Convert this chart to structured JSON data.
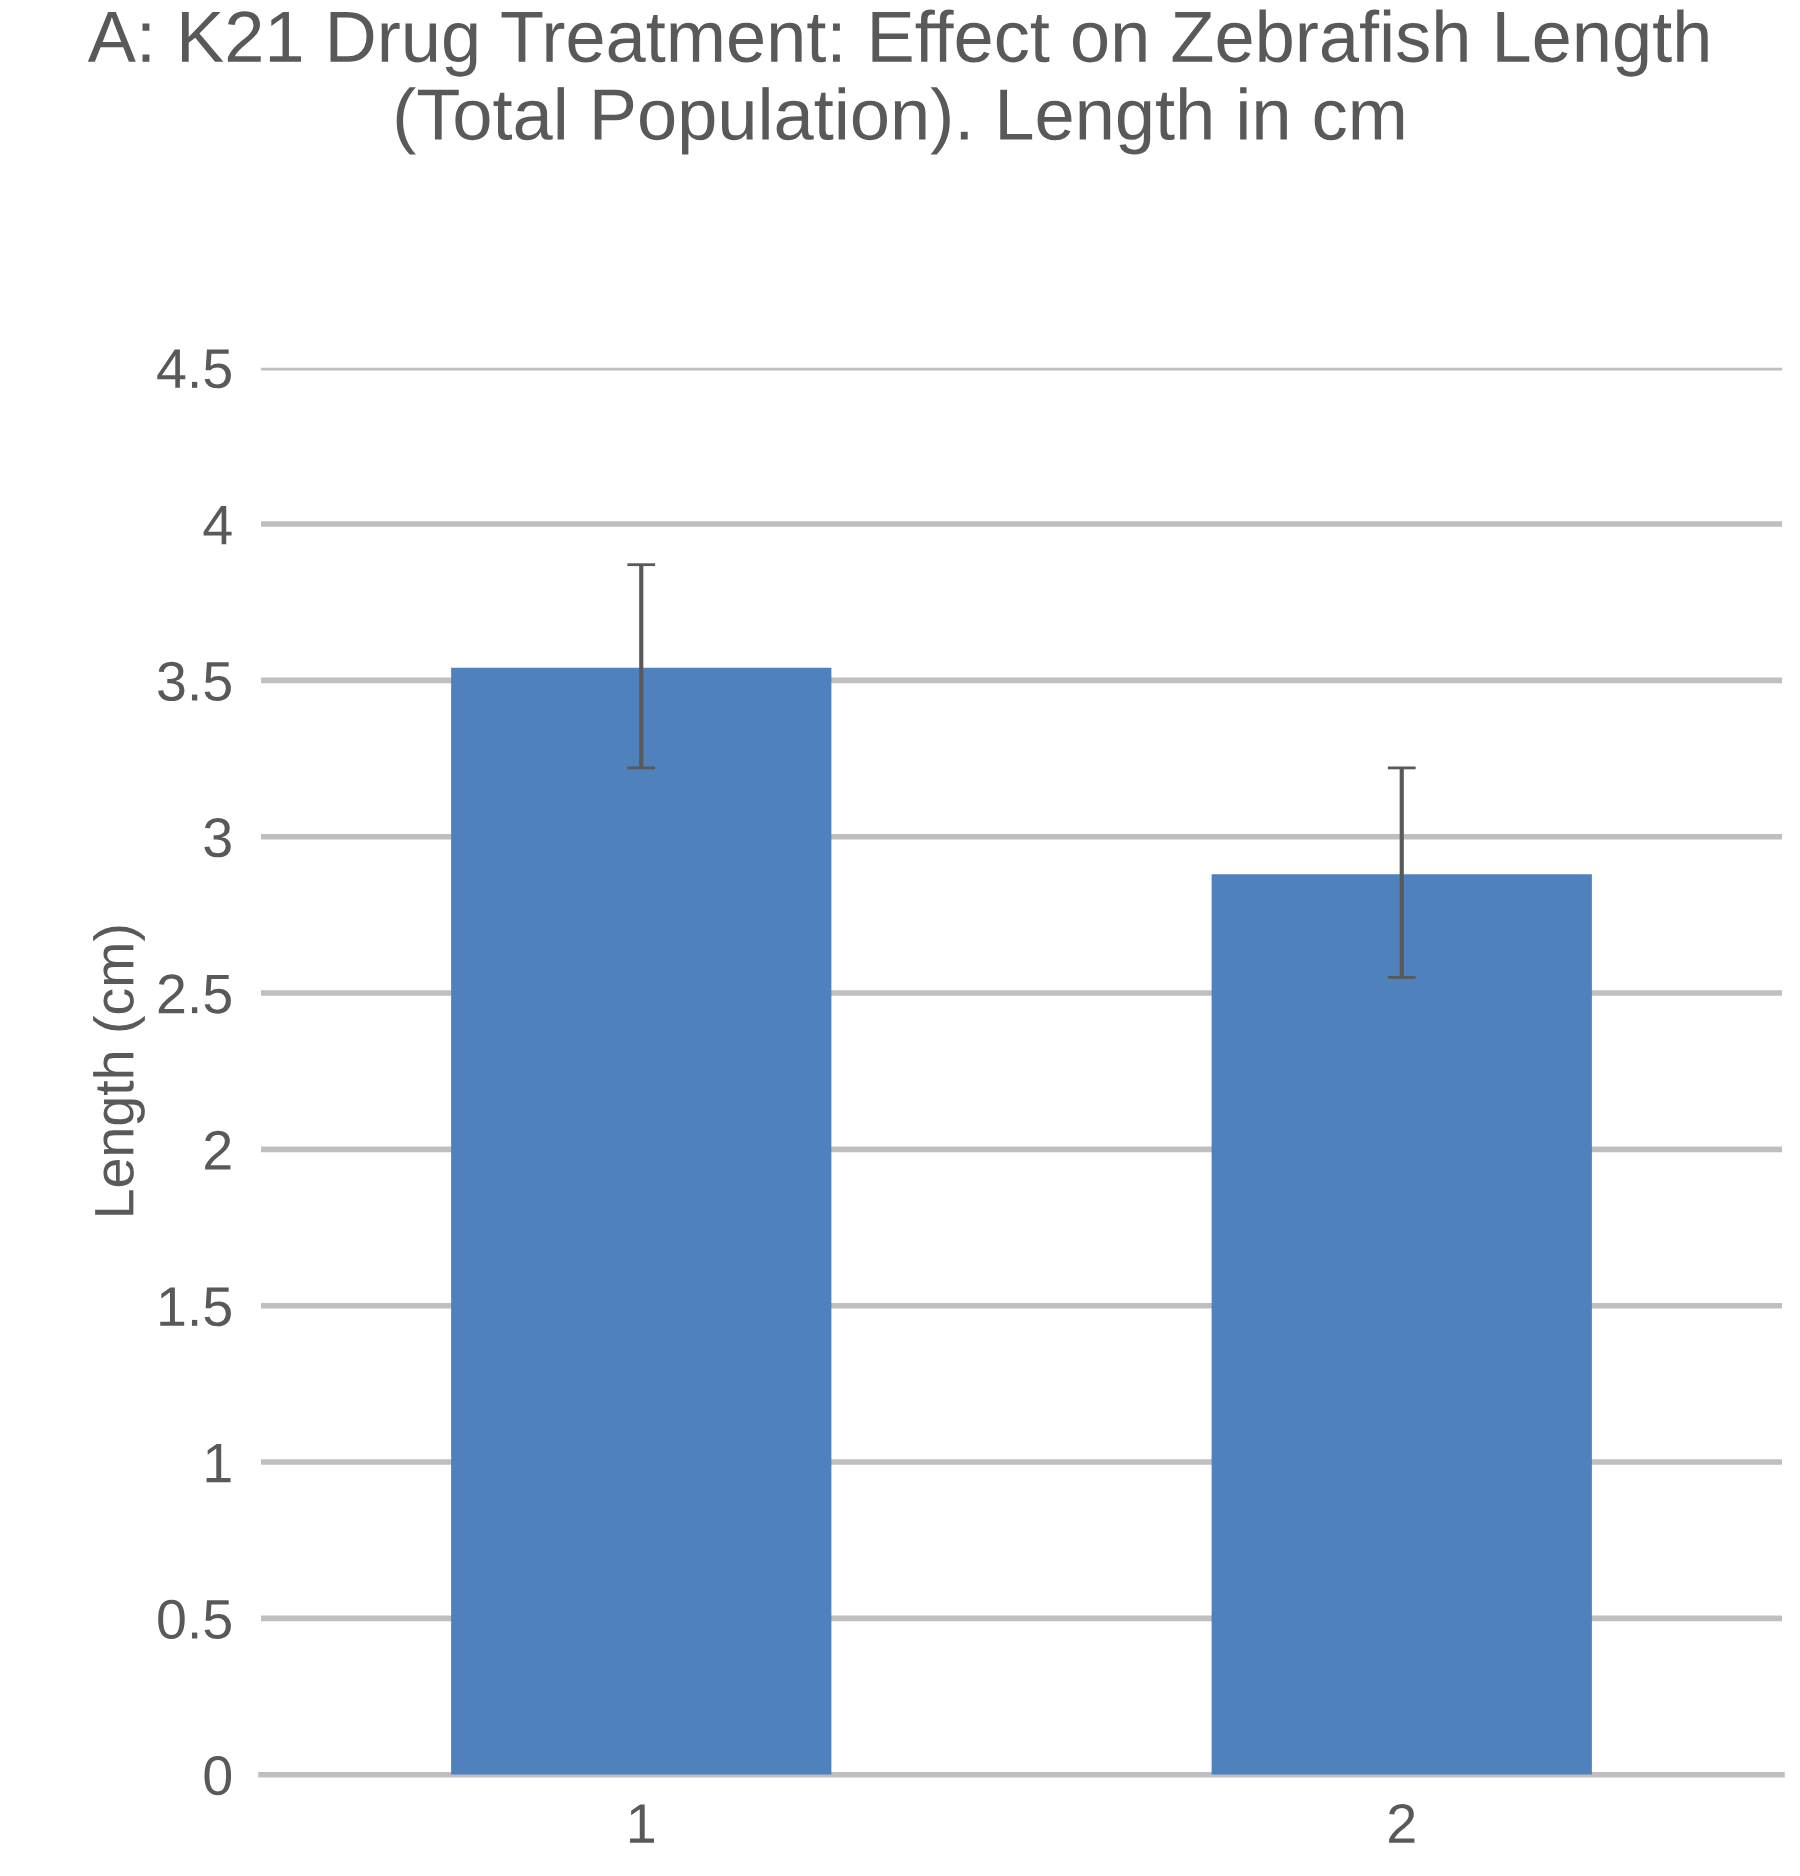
{
  "chart_data": {
    "type": "bar",
    "title": "A: K21 Drug Treatment: Effect on Zebrafish Length (Total Population). Length in cm",
    "ylabel": "Length (cm)",
    "categories": [
      "1",
      "2"
    ],
    "values": [
      3.54,
      2.88
    ],
    "errors": [
      [
        3.22,
        3.87
      ],
      [
        2.55,
        3.22
      ]
    ],
    "color": "#4f81bd",
    "ylim": [
      0,
      4.5
    ],
    "yticks": [
      0,
      0.5,
      1,
      1.5,
      2,
      2.5,
      3,
      3.5,
      4,
      4.5
    ],
    "grid": "y"
  }
}
